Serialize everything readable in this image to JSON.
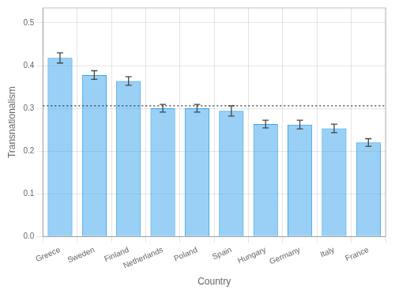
{
  "chart_data": {
    "type": "bar",
    "categories": [
      "Greece",
      "Sweden",
      "Finland",
      "Netherlands",
      "Poland",
      "Spain",
      "Hungary",
      "Germany",
      "Italy",
      "France"
    ],
    "values": [
      0.418,
      0.378,
      0.364,
      0.3,
      0.3,
      0.294,
      0.263,
      0.262,
      0.253,
      0.22
    ],
    "errors": [
      0.012,
      0.01,
      0.01,
      0.009,
      0.009,
      0.012,
      0.009,
      0.01,
      0.01,
      0.009
    ],
    "reference_line": 0.306,
    "xlabel": "Country",
    "ylabel": "Transnationalism",
    "ylim": [
      0.0,
      0.535
    ],
    "yticks": [
      {
        "value": 0.0,
        "label": "0.0"
      },
      0.1,
      0.2,
      0.3,
      0.4,
      0.5
    ],
    "grid": true
  }
}
